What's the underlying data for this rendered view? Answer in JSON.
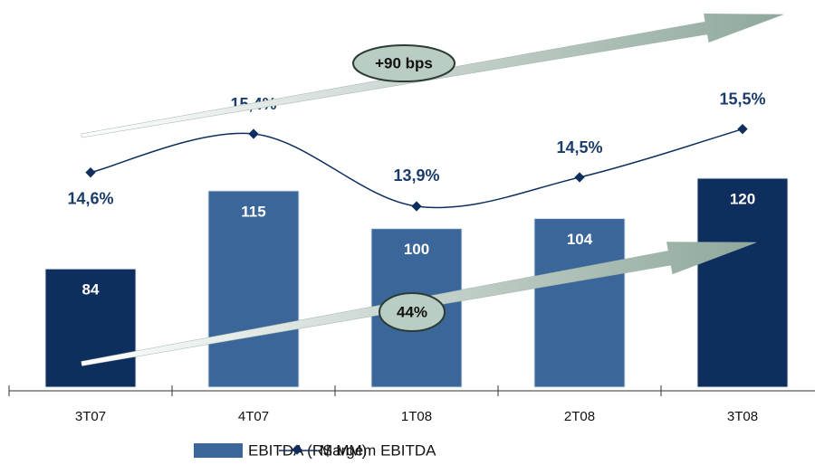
{
  "chart_data": {
    "type": "bar_line",
    "categories": [
      "3T07",
      "4T07",
      "1T08",
      "2T08",
      "3T08"
    ],
    "series": [
      {
        "name": "EBITDA (R$ MM)",
        "type": "bar",
        "color": "#3a6699",
        "colors": [
          "#0e2f5e",
          "#3a6699",
          "#3a6699",
          "#3a6699",
          "#0e2f5e"
        ],
        "values": [
          84,
          115,
          100,
          104,
          120
        ]
      },
      {
        "name": "Margem EBITDA",
        "type": "line",
        "axis": "y2",
        "color": "#0e2f5e",
        "values": [
          14.6,
          15.4,
          13.9,
          14.5,
          15.5
        ],
        "value_labels": [
          "14,6%",
          "15,4%",
          "13,9%",
          "14,5%",
          "15,5%"
        ]
      }
    ],
    "ylim": [
      37,
      175
    ],
    "y2lim": [
      10.15,
      17.35
    ],
    "annotations": [
      "+90 bps",
      "44%"
    ]
  }
}
